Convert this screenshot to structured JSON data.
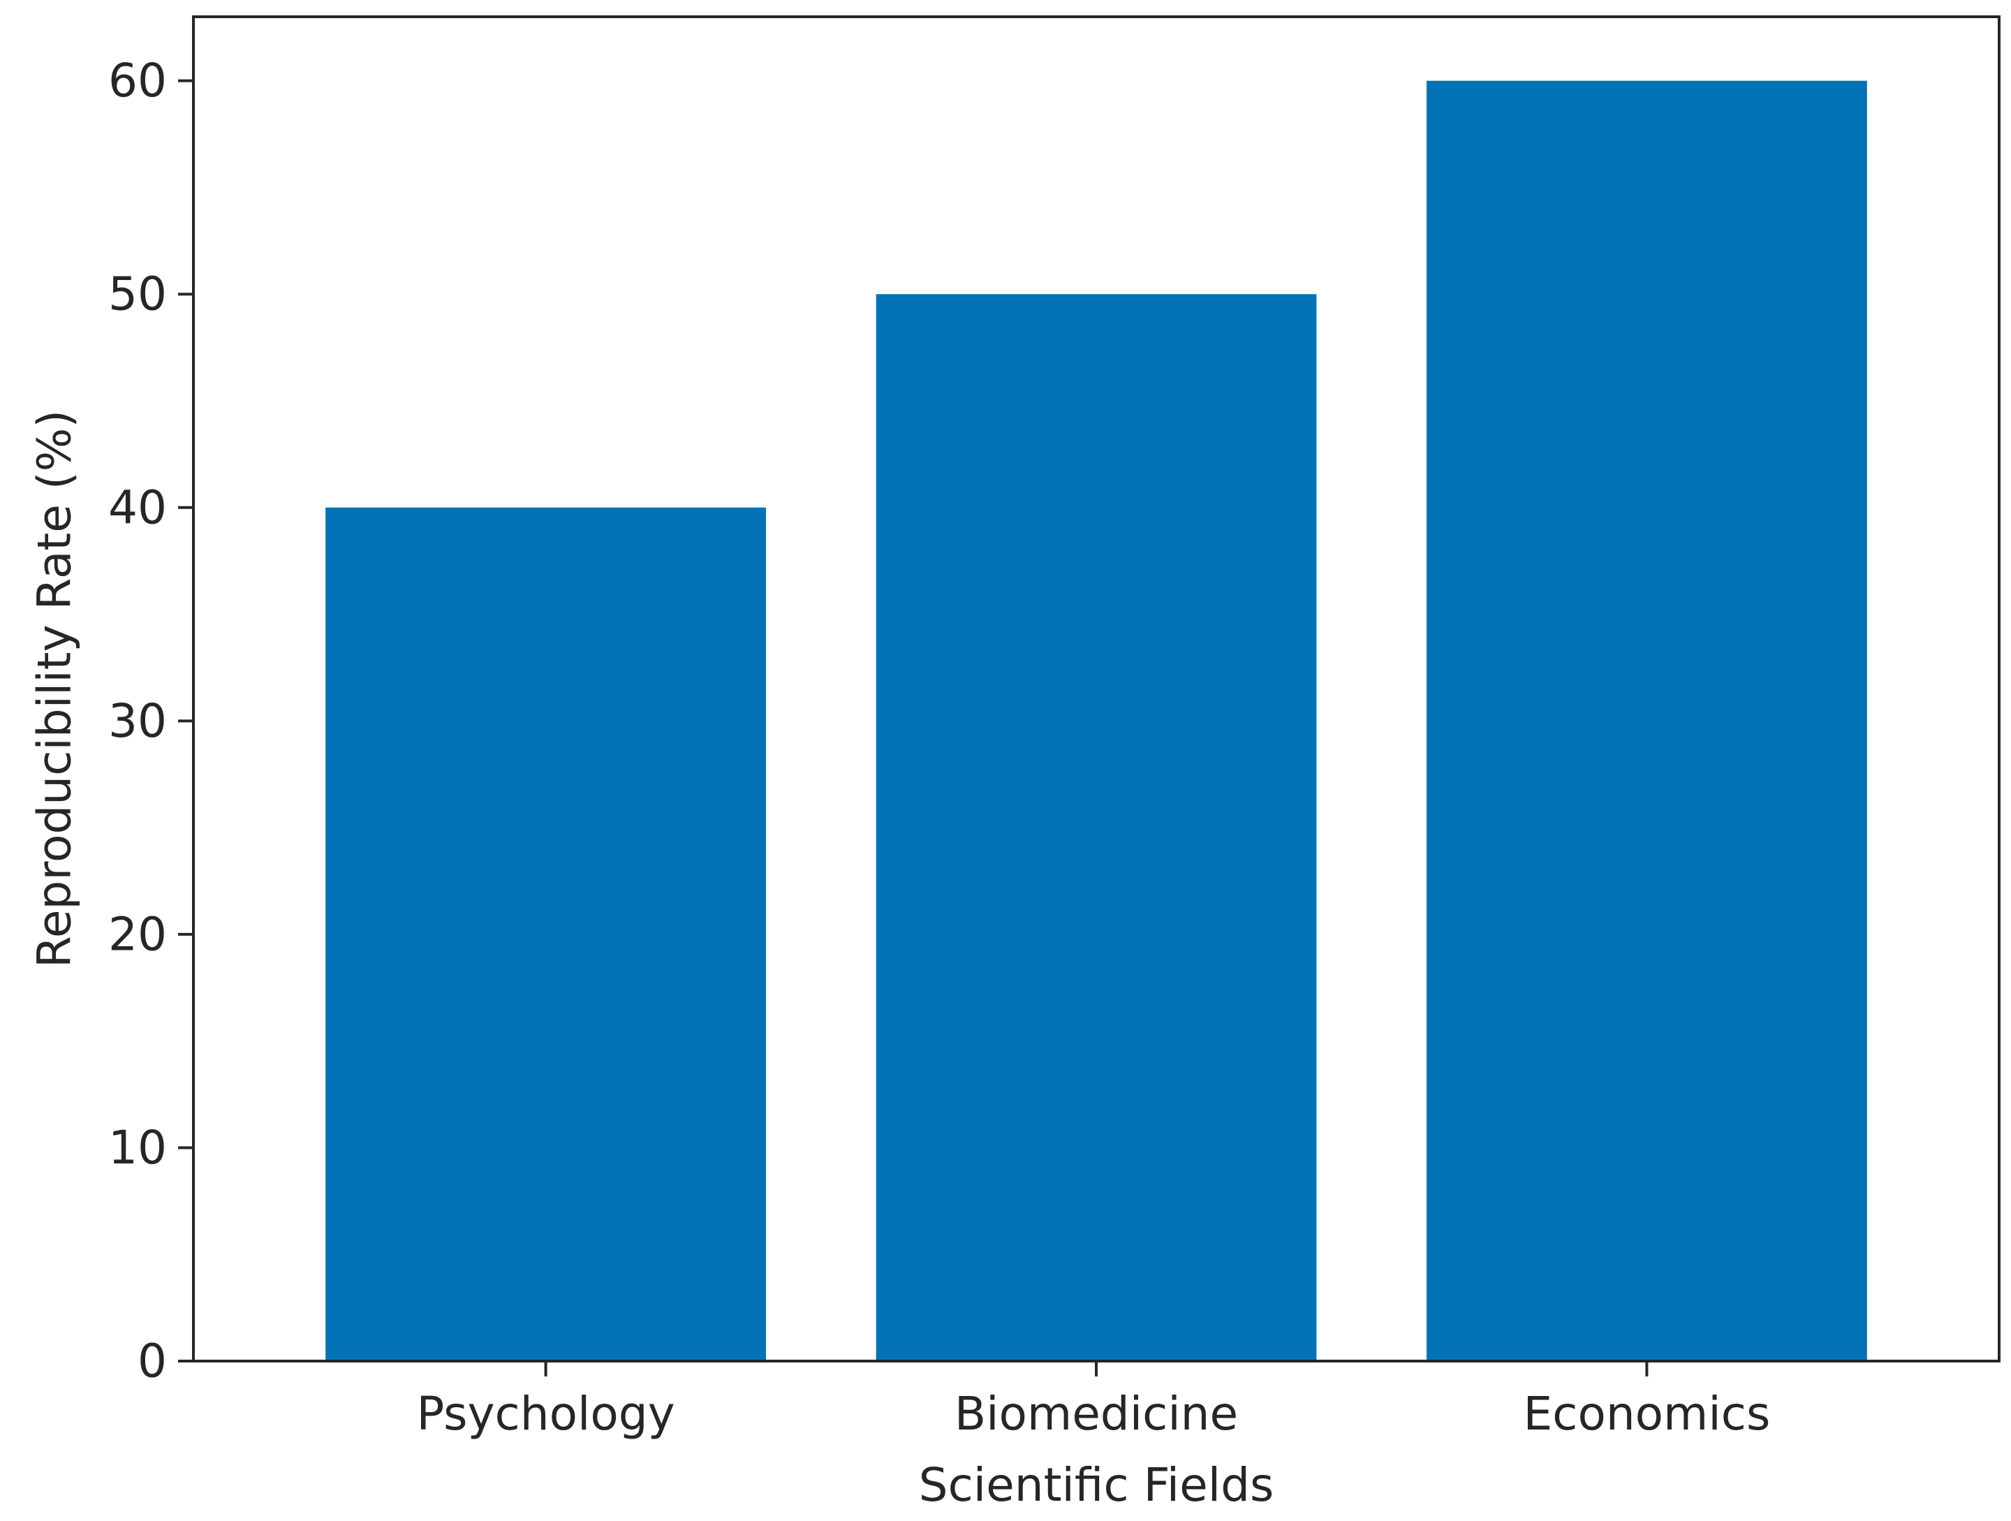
{
  "chart_data": {
    "type": "bar",
    "title": "",
    "xlabel": "Scientific Fields",
    "ylabel": "Reproducibility Rate (%)",
    "categories": [
      "Psychology",
      "Biomedicine",
      "Economics"
    ],
    "values": [
      40,
      50,
      60
    ],
    "ylim": [
      0,
      63
    ],
    "yticks": [
      0,
      10,
      20,
      30,
      40,
      50,
      60
    ],
    "bar_color": "#0072b5",
    "grid": false,
    "legend": "none"
  }
}
